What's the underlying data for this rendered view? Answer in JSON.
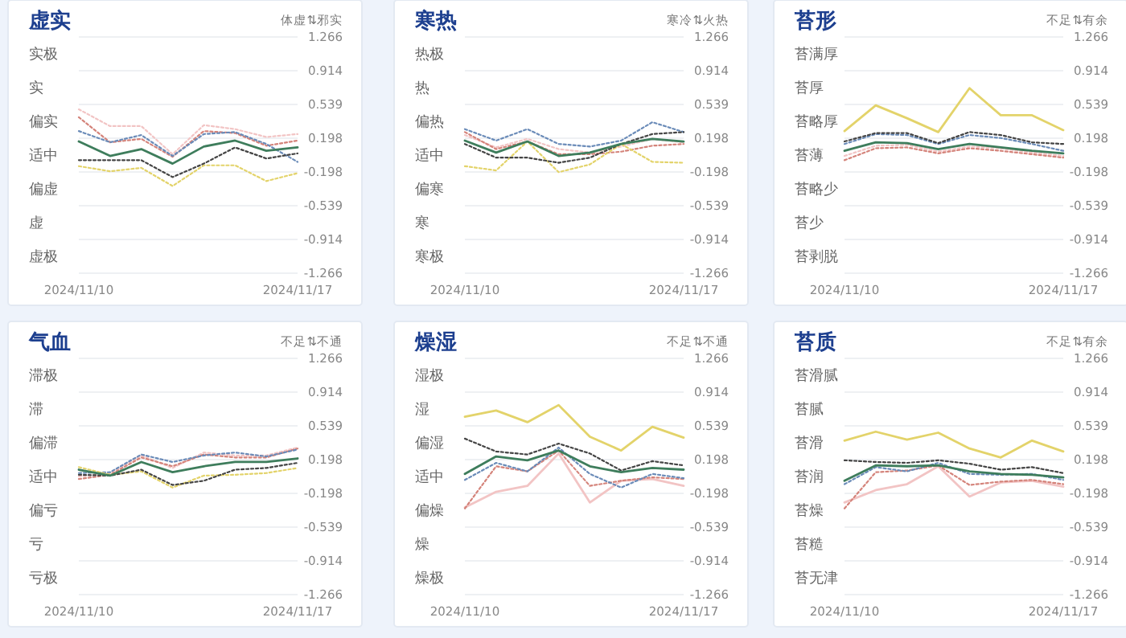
{
  "chart_data": [
    {
      "type": "line",
      "title": "虚实",
      "annotations": [
        "体虚⇅邪实"
      ],
      "x": [
        "2024-11-10",
        "2024-11-11",
        "2024-11-12",
        "2024-11-13",
        "2024-11-14",
        "2024-11-15",
        "2024-11-16",
        "2024-11-17"
      ],
      "xlim": [
        "2024-11-10",
        "2024-11-17"
      ],
      "xticks": [
        {
          "value": "2024-11-10",
          "label": "2024/11/10"
        },
        {
          "value": "2024-11-17",
          "label": "2024/11/17"
        }
      ],
      "y_categories": [
        "实极",
        "实",
        "偏实",
        "适中",
        "偏虚",
        "虚",
        "虚极"
      ],
      "ylim": [
        -1.266,
        1.266
      ],
      "yticks": [
        1.266,
        0.914,
        0.539,
        0.198,
        -0.198,
        -0.539,
        -0.914,
        -1.266
      ],
      "grid": true,
      "series": [
        {
          "color": "#f2c4c4",
          "line_style": "dotted",
          "values": [
            0.49,
            0.32,
            0.32,
            0.01,
            0.33,
            0.29,
            0.21,
            0.24
          ]
        },
        {
          "color": "#d4837a",
          "line_style": "dotted",
          "values": [
            0.41,
            0.15,
            0.19,
            -0.02,
            0.27,
            0.25,
            0.11,
            0.17
          ]
        },
        {
          "color": "#6a8bb8",
          "line_style": "dotted",
          "values": [
            0.27,
            0.15,
            0.23,
            -0.01,
            0.24,
            0.26,
            0.13,
            -0.08
          ]
        },
        {
          "color": "#e3d36a",
          "line_style": "dotted",
          "values": [
            -0.13,
            -0.19,
            -0.15,
            -0.34,
            -0.12,
            -0.12,
            -0.29,
            -0.21
          ]
        },
        {
          "color": "#444444",
          "line_style": "dotted",
          "values": [
            -0.06,
            -0.06,
            -0.06,
            -0.25,
            -0.1,
            0.09,
            -0.04,
            0.02
          ]
        },
        {
          "color": "#3e7d5c",
          "line_style": "solid",
          "values": [
            0.16,
            -0.01,
            0.07,
            -0.1,
            0.1,
            0.17,
            0.05,
            0.09
          ]
        }
      ]
    },
    {
      "type": "line",
      "title": "寒热",
      "annotations": [
        "寒冷⇅火热"
      ],
      "x": [
        "2024-11-10",
        "2024-11-11",
        "2024-11-12",
        "2024-11-13",
        "2024-11-14",
        "2024-11-15",
        "2024-11-16",
        "2024-11-17"
      ],
      "xlim": [
        "2024-11-10",
        "2024-11-17"
      ],
      "xticks": [
        {
          "value": "2024-11-10",
          "label": "2024/11/10"
        },
        {
          "value": "2024-11-17",
          "label": "2024/11/17"
        }
      ],
      "y_categories": [
        "热极",
        "热",
        "偏热",
        "适中",
        "偏寒",
        "寒",
        "寒极"
      ],
      "ylim": [
        -1.266,
        1.266
      ],
      "yticks": [
        1.266,
        0.914,
        0.539,
        0.198,
        -0.198,
        -0.539,
        -0.914,
        -1.266
      ],
      "grid": true,
      "series": [
        {
          "color": "#f2c4c4",
          "line_style": "dotted",
          "values": [
            0.23,
            0.09,
            0.19,
            0.07,
            0.03,
            0.1,
            0.19,
            0.15
          ]
        },
        {
          "color": "#d4837a",
          "line_style": "dotted",
          "values": [
            0.26,
            0.07,
            0.16,
            0.01,
            0.01,
            0.04,
            0.11,
            0.13
          ]
        },
        {
          "color": "#6a8bb8",
          "line_style": "dotted",
          "values": [
            0.29,
            0.17,
            0.29,
            0.13,
            0.1,
            0.17,
            0.36,
            0.26
          ]
        },
        {
          "color": "#e3d36a",
          "line_style": "dotted",
          "values": [
            -0.13,
            -0.18,
            0.16,
            -0.2,
            -0.11,
            0.13,
            -0.08,
            -0.09
          ]
        },
        {
          "color": "#444444",
          "line_style": "dotted",
          "values": [
            0.13,
            -0.03,
            -0.03,
            -0.09,
            -0.03,
            0.13,
            0.24,
            0.26
          ]
        },
        {
          "color": "#3e7d5c",
          "line_style": "solid",
          "values": [
            0.17,
            0.03,
            0.16,
            -0.01,
            0.03,
            0.13,
            0.19,
            0.16
          ]
        }
      ]
    },
    {
      "type": "line",
      "title": "苔形",
      "annotations": [
        "不足⇅有余"
      ],
      "x": [
        "2024-11-10",
        "2024-11-11",
        "2024-11-12",
        "2024-11-13",
        "2024-11-14",
        "2024-11-15",
        "2024-11-16",
        "2024-11-17"
      ],
      "xlim": [
        "2024-11-10",
        "2024-11-17"
      ],
      "xticks": [
        {
          "value": "2024-11-10",
          "label": "2024/11/10"
        },
        {
          "value": "2024-11-17",
          "label": "2024/11/17"
        }
      ],
      "y_categories": [
        "苔满厚",
        "苔厚",
        "苔略厚",
        "苔薄",
        "苔略少",
        "苔少",
        "苔剥脱"
      ],
      "ylim": [
        -1.266,
        1.266
      ],
      "yticks": [
        1.266,
        0.914,
        0.539,
        0.198,
        -0.198,
        -0.539,
        -0.914,
        -1.266
      ],
      "grid": true,
      "series": [
        {
          "color": "#f2c4c4",
          "line_style": "dotted",
          "values": [
            -0.01,
            0.11,
            0.12,
            0.04,
            0.1,
            0.08,
            0.03,
            -0.01
          ]
        },
        {
          "color": "#d4837a",
          "line_style": "dotted",
          "values": [
            -0.06,
            0.08,
            0.09,
            0.02,
            0.08,
            0.05,
            0.01,
            -0.03
          ]
        },
        {
          "color": "#6a8bb8",
          "line_style": "dotted",
          "values": [
            0.13,
            0.24,
            0.23,
            0.13,
            0.23,
            0.2,
            0.13,
            0.05
          ]
        },
        {
          "color": "#e3d36a",
          "line_style": "solid",
          "values": [
            0.27,
            0.53,
            0.4,
            0.26,
            0.72,
            0.43,
            0.43,
            0.28
          ]
        },
        {
          "color": "#444444",
          "line_style": "dotted",
          "values": [
            0.16,
            0.25,
            0.25,
            0.14,
            0.26,
            0.23,
            0.15,
            0.13
          ]
        },
        {
          "color": "#3e7d5c",
          "line_style": "solid",
          "values": [
            0.05,
            0.15,
            0.14,
            0.07,
            0.13,
            0.09,
            0.05,
            0.02
          ]
        }
      ]
    },
    {
      "type": "line",
      "title": "气血",
      "annotations": [
        "不足⇅不通"
      ],
      "x": [
        "2024-11-10",
        "2024-11-11",
        "2024-11-12",
        "2024-11-13",
        "2024-11-14",
        "2024-11-15",
        "2024-11-16",
        "2024-11-17"
      ],
      "xlim": [
        "2024-11-10",
        "2024-11-17"
      ],
      "xticks": [
        {
          "value": "2024-11-10",
          "label": "2024/11/10"
        },
        {
          "value": "2024-11-17",
          "label": "2024/11/17"
        }
      ],
      "y_categories": [
        "滞极",
        "滞",
        "偏滞",
        "适中",
        "偏亏",
        "亏",
        "亏极"
      ],
      "ylim": [
        -1.266,
        1.266
      ],
      "yticks": [
        1.266,
        0.914,
        0.539,
        0.198,
        -0.198,
        -0.539,
        -0.914,
        -1.266
      ],
      "grid": true,
      "series": [
        {
          "color": "#f2c4c4",
          "line_style": "dotted",
          "values": [
            0,
            0.04,
            0.24,
            0.1,
            0.27,
            0.24,
            0.24,
            0.32
          ]
        },
        {
          "color": "#d4837a",
          "line_style": "dotted",
          "values": [
            -0.03,
            0.02,
            0.22,
            0.12,
            0.25,
            0.22,
            0.22,
            0.31
          ]
        },
        {
          "color": "#6a8bb8",
          "line_style": "dotted",
          "values": [
            0.04,
            0.05,
            0.25,
            0.17,
            0.24,
            0.27,
            0.23,
            0.3
          ]
        },
        {
          "color": "#e3d36a",
          "line_style": "dotted",
          "values": [
            0.11,
            0.02,
            0.06,
            -0.13,
            0.01,
            0.02,
            0.04,
            0.1
          ]
        },
        {
          "color": "#444444",
          "line_style": "dotted",
          "values": [
            0.02,
            0.01,
            0.08,
            -0.1,
            -0.05,
            0.08,
            0.1,
            0.16
          ]
        },
        {
          "color": "#3e7d5c",
          "line_style": "solid",
          "values": [
            0.08,
            0.01,
            0.17,
            0.05,
            0.12,
            0.17,
            0.17,
            0.21
          ]
        }
      ]
    },
    {
      "type": "line",
      "title": "燥湿",
      "annotations": [
        "不足⇅不通"
      ],
      "x": [
        "2024-11-10",
        "2024-11-11",
        "2024-11-12",
        "2024-11-13",
        "2024-11-14",
        "2024-11-15",
        "2024-11-16",
        "2024-11-17"
      ],
      "xlim": [
        "2024-11-10",
        "2024-11-17"
      ],
      "xticks": [
        {
          "value": "2024-11-10",
          "label": "2024/11/10"
        },
        {
          "value": "2024-11-17",
          "label": "2024/11/17"
        }
      ],
      "y_categories": [
        "湿极",
        "湿",
        "偏湿",
        "适中",
        "偏燥",
        "燥",
        "燥极"
      ],
      "ylim": [
        -1.266,
        1.266
      ],
      "yticks": [
        1.266,
        0.914,
        0.539,
        0.198,
        -0.198,
        -0.539,
        -0.914,
        -1.266
      ],
      "grid": true,
      "series": [
        {
          "color": "#f2c4c4",
          "line_style": "solid",
          "values": [
            -0.34,
            -0.18,
            -0.11,
            0.26,
            -0.29,
            -0.05,
            -0.03,
            -0.11
          ]
        },
        {
          "color": "#d4837a",
          "line_style": "dotted",
          "values": [
            -0.35,
            0.12,
            0.06,
            0.29,
            -0.11,
            -0.05,
            -0.01,
            -0.03
          ]
        },
        {
          "color": "#6a8bb8",
          "line_style": "dotted",
          "values": [
            -0.04,
            0.16,
            0.06,
            0.32,
            0.03,
            -0.13,
            0.03,
            -0.02
          ]
        },
        {
          "color": "#e3d36a",
          "line_style": "solid",
          "values": [
            0.64,
            0.71,
            0.58,
            0.77,
            0.43,
            0.29,
            0.53,
            0.42
          ]
        },
        {
          "color": "#444444",
          "line_style": "dotted",
          "values": [
            0.41,
            0.28,
            0.25,
            0.36,
            0.26,
            0.07,
            0.18,
            0.13
          ]
        },
        {
          "color": "#3e7d5c",
          "line_style": "solid",
          "values": [
            0.03,
            0.23,
            0.19,
            0.29,
            0.12,
            0.05,
            0.1,
            0.08
          ]
        }
      ]
    },
    {
      "type": "line",
      "title": "苔质",
      "annotations": [
        "不足⇅有余"
      ],
      "x": [
        "2024-11-10",
        "2024-11-11",
        "2024-11-12",
        "2024-11-13",
        "2024-11-14",
        "2024-11-15",
        "2024-11-16",
        "2024-11-17"
      ],
      "xlim": [
        "2024-11-10",
        "2024-11-17"
      ],
      "xticks": [
        {
          "value": "2024-11-10",
          "label": "2024/11/10"
        },
        {
          "value": "2024-11-17",
          "label": "2024/11/17"
        }
      ],
      "y_categories": [
        "苔滑腻",
        "苔腻",
        "苔滑",
        "苔润",
        "苔燥",
        "苔糙",
        "苔无津"
      ],
      "ylim": [
        -1.266,
        1.266
      ],
      "yticks": [
        1.266,
        0.914,
        0.539,
        0.198,
        -0.198,
        -0.539,
        -0.914,
        -1.266
      ],
      "grid": true,
      "series": [
        {
          "color": "#f2c4c4",
          "line_style": "solid",
          "values": [
            -0.29,
            -0.16,
            -0.09,
            0.12,
            -0.23,
            -0.07,
            -0.05,
            -0.12
          ]
        },
        {
          "color": "#d4837a",
          "line_style": "dotted",
          "values": [
            -0.35,
            0.05,
            0.07,
            0.13,
            -0.1,
            -0.06,
            -0.04,
            -0.09
          ]
        },
        {
          "color": "#6a8bb8",
          "line_style": "dotted",
          "values": [
            -0.09,
            0.11,
            0.06,
            0.16,
            0.03,
            0.02,
            0.03,
            -0.04
          ]
        },
        {
          "color": "#e3d36a",
          "line_style": "solid",
          "values": [
            0.39,
            0.48,
            0.4,
            0.47,
            0.31,
            0.22,
            0.39,
            0.28
          ]
        },
        {
          "color": "#444444",
          "line_style": "dotted",
          "values": [
            0.19,
            0.17,
            0.16,
            0.19,
            0.15,
            0.08,
            0.11,
            0.04
          ]
        },
        {
          "color": "#3e7d5c",
          "line_style": "solid",
          "values": [
            -0.05,
            0.13,
            0.12,
            0.13,
            0.06,
            0.03,
            0.02,
            -0.01
          ]
        }
      ]
    }
  ]
}
